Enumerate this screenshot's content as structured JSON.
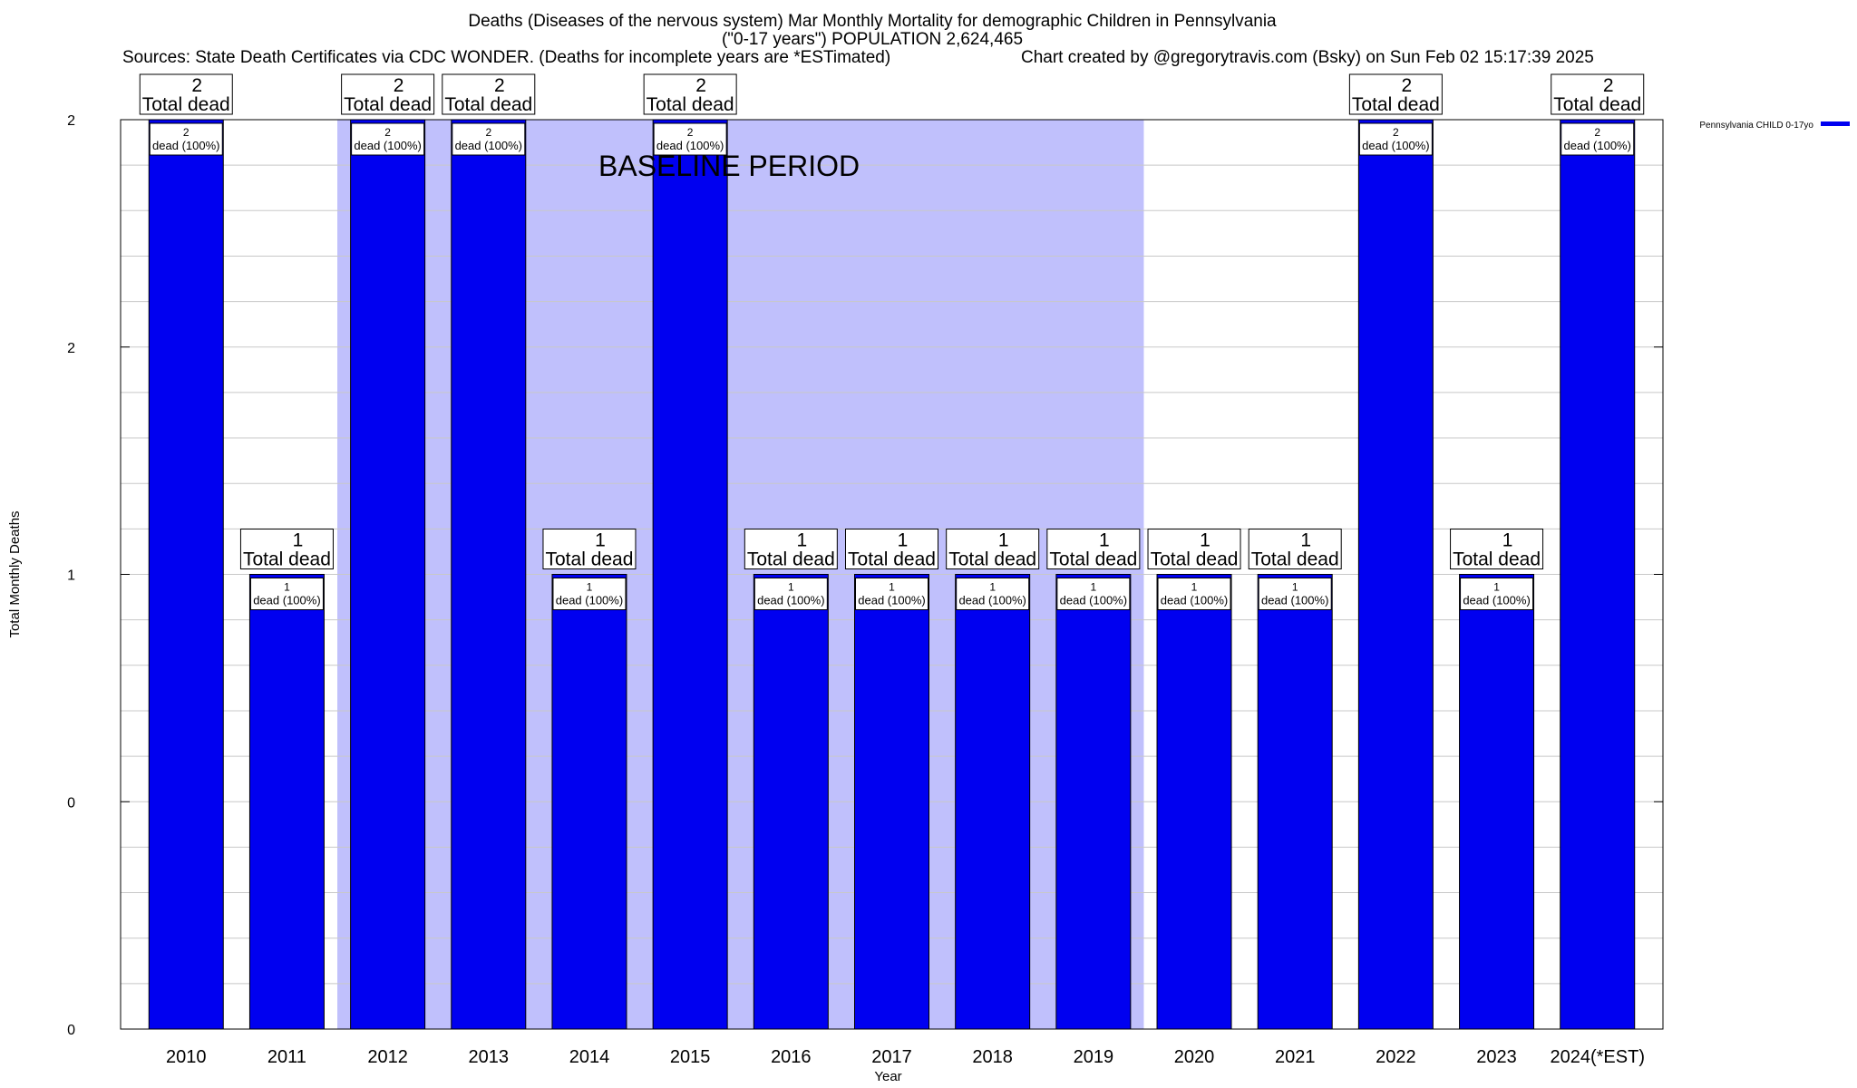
{
  "header": {
    "title_line1": "Deaths (Diseases of the nervous system) Mar Monthly Mortality for demographic Children in Pennsylvania",
    "title_line2": "(\"0-17 years\") POPULATION 2,624,465",
    "sources": "Sources: State Death Certificates via CDC WONDER. (Deaths for incomplete years are *ESTimated)",
    "credit": "Chart created by @gregorytravis.com (Bsky) on Sun Feb 02 15:17:39 2025"
  },
  "chart_data": {
    "type": "bar",
    "xlabel": "Year",
    "ylabel": "Total Monthly Deaths",
    "categories": [
      "2010",
      "2011",
      "2012",
      "2013",
      "2014",
      "2015",
      "2016",
      "2017",
      "2018",
      "2019",
      "2020",
      "2021",
      "2022",
      "2023",
      "2024(*EST)"
    ],
    "series": [
      {
        "name": "Pennsylvania CHILD 0-17yo",
        "color": "#0000f0",
        "values": [
          2,
          1,
          2,
          2,
          1,
          2,
          1,
          1,
          1,
          1,
          1,
          1,
          2,
          1,
          2
        ]
      }
    ],
    "ylim": [
      0,
      2
    ],
    "yticks": [
      {
        "value": 0,
        "label": "0"
      },
      {
        "value": 0.5,
        "label": "0"
      },
      {
        "value": 1,
        "label": "1"
      },
      {
        "value": 1.5,
        "label": "2"
      },
      {
        "value": 2,
        "label": "2"
      }
    ],
    "total_labels": [
      {
        "count": "2",
        "text": "Total dead"
      },
      {
        "count": "1",
        "text": "Total dead"
      },
      {
        "count": "2",
        "text": "Total dead"
      },
      {
        "count": "2",
        "text": "Total dead"
      },
      {
        "count": "1",
        "text": "Total dead"
      },
      {
        "count": "2",
        "text": "Total dead"
      },
      {
        "count": "1",
        "text": "Total dead"
      },
      {
        "count": "1",
        "text": "Total dead"
      },
      {
        "count": "1",
        "text": "Total dead"
      },
      {
        "count": "1",
        "text": "Total dead"
      },
      {
        "count": "1",
        "text": "Total dead"
      },
      {
        "count": "1",
        "text": "Total dead"
      },
      {
        "count": "2",
        "text": "Total dead"
      },
      {
        "count": "1",
        "text": "Total dead"
      },
      {
        "count": "2",
        "text": "Total dead"
      }
    ],
    "inner_labels": [
      {
        "count": "2",
        "text": "dead (100%)"
      },
      {
        "count": "1",
        "text": "dead (100%)"
      },
      {
        "count": "2",
        "text": "dead (100%)"
      },
      {
        "count": "2",
        "text": "dead (100%)"
      },
      {
        "count": "1",
        "text": "dead (100%)"
      },
      {
        "count": "2",
        "text": "dead (100%)"
      },
      {
        "count": "1",
        "text": "dead (100%)"
      },
      {
        "count": "1",
        "text": "dead (100%)"
      },
      {
        "count": "1",
        "text": "dead (100%)"
      },
      {
        "count": "1",
        "text": "dead (100%)"
      },
      {
        "count": "1",
        "text": "dead (100%)"
      },
      {
        "count": "1",
        "text": "dead (100%)"
      },
      {
        "count": "2",
        "text": "dead (100%)"
      },
      {
        "count": "1",
        "text": "dead (100%)"
      },
      {
        "count": "2",
        "text": "dead (100%)"
      }
    ],
    "baseline": {
      "label": "BASELINE PERIOD",
      "from": "2012",
      "to": "2019",
      "color": "#c0c0fc"
    },
    "legend": {
      "placement": "top-right"
    },
    "grid": true
  }
}
